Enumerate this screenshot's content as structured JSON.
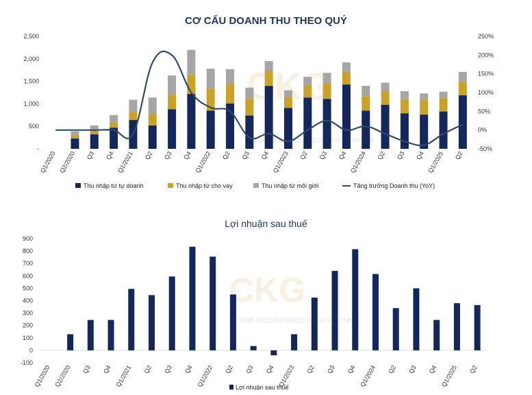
{
  "chart_data": [
    {
      "type": "bar",
      "stacked": true,
      "title": "CƠ CẤU DOANH THU THEO QUÝ",
      "categories": [
        "Q1/2020",
        "Q2/2020",
        "Q3",
        "Q4",
        "Q1/2021",
        "Q2",
        "Q3",
        "Q4",
        "Q1/2022",
        "Q2",
        "Q3",
        "Q4",
        "Q1/2023",
        "Q2",
        "Q3",
        "Q4",
        "Q1/2024",
        "Q2",
        "Q3",
        "Q4",
        "Q1/2025",
        "Q2"
      ],
      "ylim": [
        0,
        2500
      ],
      "y_ticks": [
        "2,500",
        "2,000",
        "1,500",
        "1,000",
        "500",
        "-"
      ],
      "y2lim": [
        -50,
        250
      ],
      "y2_ticks": [
        "250%",
        "200%",
        "150%",
        "100%",
        "50%",
        "0%",
        "-50%"
      ],
      "series": [
        {
          "name": "Thu nhập từ tự doanh",
          "color": "#14275a",
          "values": [
            0,
            230,
            320,
            470,
            640,
            520,
            880,
            1220,
            850,
            1010,
            740,
            1400,
            910,
            1140,
            1110,
            1430,
            850,
            980,
            790,
            760,
            830,
            1190
          ]
        },
        {
          "name": "Thu nhập từ cho vay",
          "color": "#c9a227",
          "values": [
            0,
            80,
            100,
            120,
            180,
            250,
            320,
            430,
            480,
            430,
            370,
            330,
            250,
            270,
            340,
            280,
            320,
            300,
            310,
            320,
            300,
            290
          ]
        },
        {
          "name": "Thu nhập từ môi giới",
          "color": "#a6a6a6",
          "values": [
            0,
            80,
            100,
            160,
            270,
            370,
            430,
            550,
            450,
            330,
            250,
            220,
            140,
            190,
            240,
            210,
            230,
            190,
            180,
            150,
            140,
            230
          ]
        },
        {
          "name": "Tăng trưởng Doanh thu (YoY)",
          "color": "#2e4a6e",
          "type": "line",
          "axis": "right",
          "values": [
            0,
            0,
            0,
            0,
            -10,
            180,
            200,
            100,
            60,
            50,
            -20,
            -10,
            -30,
            0,
            25,
            0,
            10,
            -10,
            -30,
            -40,
            -10,
            15
          ]
        }
      ],
      "legend_position": "bottom"
    },
    {
      "type": "bar",
      "title": "Lợi nhuận sau thuế",
      "categories": [
        "Q1/2020",
        "Q2/2020",
        "Q3",
        "Q4",
        "Q1/2021",
        "Q2",
        "Q3",
        "Q4",
        "Q1/2022",
        "Q2",
        "Q3",
        "Q4",
        "Q1/2023",
        "Q2",
        "Q3",
        "Q4",
        "Q1/2024",
        "Q2",
        "Q3",
        "Q4",
        "Q1/2025",
        "Q2"
      ],
      "ylim": [
        -100,
        900
      ],
      "y_ticks": [
        "900",
        "800",
        "700",
        "600",
        "500",
        "400",
        "300",
        "200",
        "100",
        "0",
        "-100"
      ],
      "series": [
        {
          "name": "Lợi nhuận sau thuế",
          "color": "#14275a",
          "values": [
            0,
            130,
            245,
            245,
            495,
            445,
            595,
            835,
            755,
            450,
            35,
            -40,
            130,
            425,
            640,
            815,
            615,
            340,
            500,
            245,
            380,
            365
          ]
        }
      ],
      "legend_position": "bottom"
    }
  ],
  "watermark": {
    "logo_text": "CKG",
    "sub_text": "YOUR TRUSTED INVESTMENT PARTNER"
  }
}
